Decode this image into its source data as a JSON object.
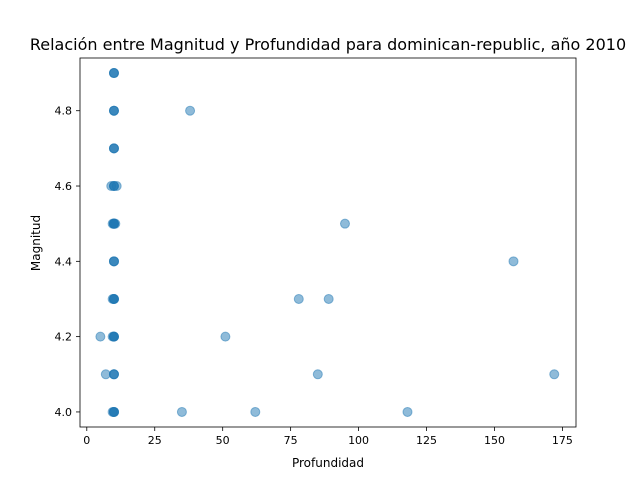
{
  "chart_data": {
    "type": "scatter",
    "title": "Relación entre Magnitud y Profundidad para dominican-republic, año 2010",
    "xlabel": "Profundidad",
    "ylabel": "Magnitud",
    "xlim": [
      -2.5,
      180
    ],
    "ylim": [
      3.96,
      4.94
    ],
    "xticks": [
      0,
      25,
      50,
      75,
      100,
      125,
      150,
      175
    ],
    "yticks": [
      4.0,
      4.2,
      4.4,
      4.6,
      4.8
    ],
    "ytick_labels": [
      "4.0",
      "4.2",
      "4.4",
      "4.6",
      "4.8"
    ],
    "grid": false,
    "marker_color": "#1f77b4",
    "marker_opacity": 0.5,
    "points": [
      [
        10,
        4.9
      ],
      [
        10,
        4.9
      ],
      [
        10,
        4.9
      ],
      [
        10,
        4.8
      ],
      [
        10,
        4.8
      ],
      [
        10,
        4.8
      ],
      [
        10,
        4.7
      ],
      [
        10,
        4.7
      ],
      [
        10,
        4.7
      ],
      [
        9,
        4.6
      ],
      [
        10,
        4.6
      ],
      [
        10,
        4.6
      ],
      [
        10,
        4.6
      ],
      [
        11,
        4.6
      ],
      [
        10,
        4.5
      ],
      [
        10,
        4.5
      ],
      [
        10,
        4.5
      ],
      [
        10,
        4.5
      ],
      [
        10,
        4.5
      ],
      [
        10,
        4.5
      ],
      [
        9.5,
        4.5
      ],
      [
        10.5,
        4.5
      ],
      [
        10,
        4.4
      ],
      [
        10,
        4.4
      ],
      [
        10,
        4.4
      ],
      [
        10,
        4.3
      ],
      [
        10,
        4.3
      ],
      [
        10,
        4.3
      ],
      [
        10,
        4.3
      ],
      [
        9.5,
        4.3
      ],
      [
        10,
        4.2
      ],
      [
        10,
        4.2
      ],
      [
        10,
        4.2
      ],
      [
        10,
        4.2
      ],
      [
        9.5,
        4.2
      ],
      [
        10,
        4.1
      ],
      [
        10,
        4.1
      ],
      [
        10,
        4.1
      ],
      [
        10,
        4.0
      ],
      [
        10,
        4.0
      ],
      [
        10,
        4.0
      ],
      [
        10,
        4.0
      ],
      [
        9.5,
        4.0
      ],
      [
        5,
        4.2
      ],
      [
        7,
        4.1
      ],
      [
        38,
        4.8
      ],
      [
        95,
        4.5
      ],
      [
        157,
        4.4
      ],
      [
        78,
        4.3
      ],
      [
        89,
        4.3
      ],
      [
        51,
        4.2
      ],
      [
        85,
        4.1
      ],
      [
        172,
        4.1
      ],
      [
        35,
        4.0
      ],
      [
        62,
        4.0
      ],
      [
        118,
        4.0
      ]
    ]
  }
}
